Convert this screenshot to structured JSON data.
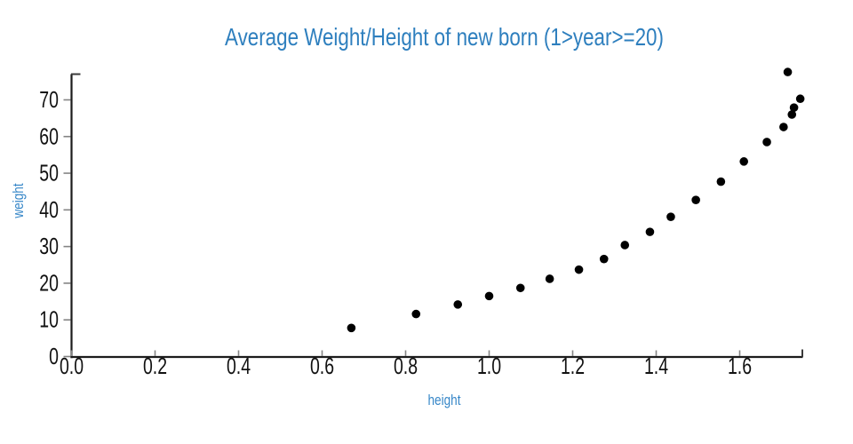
{
  "page": {
    "background": "#ffffff"
  },
  "chart_data": {
    "type": "scatter",
    "title": "Average Weight/Height of new born (1>year>=20)",
    "xlabel": "height",
    "ylabel": "weight",
    "xlim": [
      0.0,
      1.75
    ],
    "ylim": [
      0,
      77
    ],
    "grid": false,
    "legend": false,
    "x_ticks": [
      {
        "value": 0.0,
        "label": "0.0"
      },
      {
        "value": 0.2,
        "label": "0.2"
      },
      {
        "value": 0.4,
        "label": "0.4"
      },
      {
        "value": 0.6,
        "label": "0.6"
      },
      {
        "value": 0.8,
        "label": "0.8"
      },
      {
        "value": 1.0,
        "label": "1.0"
      },
      {
        "value": 1.2,
        "label": "1.2"
      },
      {
        "value": 1.4,
        "label": "1.4"
      },
      {
        "value": 1.6,
        "label": "1.6"
      }
    ],
    "y_ticks": [
      {
        "value": 0,
        "label": "0"
      },
      {
        "value": 10,
        "label": "10"
      },
      {
        "value": 20,
        "label": "20"
      },
      {
        "value": 30,
        "label": "30"
      },
      {
        "value": 40,
        "label": "40"
      },
      {
        "value": 50,
        "label": "50"
      },
      {
        "value": 60,
        "label": "60"
      },
      {
        "value": 70,
        "label": "70"
      }
    ],
    "points": [
      {
        "height": 0.67,
        "weight": 7.8
      },
      {
        "height": 0.825,
        "weight": 11.6
      },
      {
        "height": 0.925,
        "weight": 14.2
      },
      {
        "height": 1.0,
        "weight": 16.5
      },
      {
        "height": 1.075,
        "weight": 18.7
      },
      {
        "height": 1.145,
        "weight": 21.2
      },
      {
        "height": 1.215,
        "weight": 23.7
      },
      {
        "height": 1.275,
        "weight": 26.6
      },
      {
        "height": 1.325,
        "weight": 30.4
      },
      {
        "height": 1.385,
        "weight": 34.0
      },
      {
        "height": 1.435,
        "weight": 38.1
      },
      {
        "height": 1.495,
        "weight": 42.7
      },
      {
        "height": 1.555,
        "weight": 47.7
      },
      {
        "height": 1.61,
        "weight": 53.2
      },
      {
        "height": 1.665,
        "weight": 58.5
      },
      {
        "height": 1.705,
        "weight": 62.6
      },
      {
        "height": 1.725,
        "weight": 66.0
      },
      {
        "height": 1.73,
        "weight": 67.9
      },
      {
        "height": 1.745,
        "weight": 70.3
      },
      {
        "height": 1.715,
        "weight": 77.6
      }
    ],
    "colors": {
      "title": "#2e7fbe",
      "axis_label": "#3787c8",
      "point": "#000000",
      "spine": "#1c1c1c",
      "tick": "#848484",
      "tick_label": "#111111",
      "end_tick": "#3a3a3a"
    }
  }
}
